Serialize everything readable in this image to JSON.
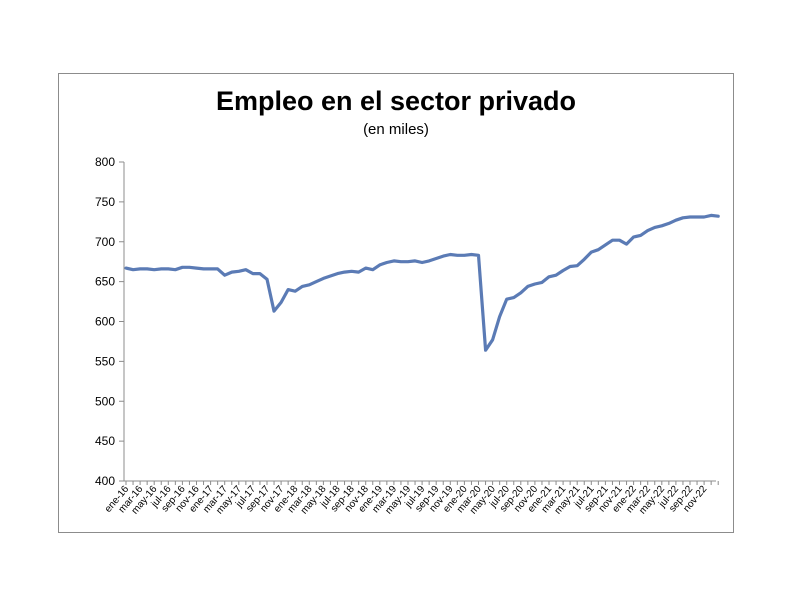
{
  "chart_data": {
    "type": "line",
    "title": "Empleo en el sector privado",
    "subtitle": "(en miles)",
    "xlabel": "",
    "ylabel": "",
    "ylim": [
      400,
      800
    ],
    "yticks": [
      400,
      450,
      500,
      550,
      600,
      650,
      700,
      750,
      800
    ],
    "grid": false,
    "legend": "none",
    "line_color": "#5b7bb5",
    "x_tick_labels": [
      "ene-16",
      "mar-16",
      "may-16",
      "jul-16",
      "sep-16",
      "nov-16",
      "ene-17",
      "mar-17",
      "may-17",
      "jul-17",
      "sep-17",
      "nov-17",
      "ene-18",
      "mar-18",
      "may-18",
      "jul-18",
      "sep-18",
      "nov-18",
      "ene-19",
      "mar-19",
      "may-19",
      "jul-19",
      "sep-19",
      "nov-19",
      "ene-20",
      "mar-20",
      "may-20",
      "jul-20",
      "sep-20",
      "nov-20",
      "ene-21",
      "mar-21",
      "may-21",
      "jul-21",
      "sep-21",
      "nov-21",
      "ene-22",
      "mar-22",
      "may-22",
      "jul-22",
      "sep-22",
      "nov-22"
    ],
    "series": [
      {
        "values": [
          667,
          665,
          666,
          666,
          665,
          666,
          666,
          665,
          668,
          668,
          667,
          666,
          666,
          666,
          658,
          662,
          663,
          665,
          660,
          660,
          653,
          613,
          624,
          640,
          638,
          644,
          646,
          650,
          654,
          657,
          660,
          662,
          663,
          662,
          667,
          665,
          671,
          674,
          676,
          675,
          675,
          676,
          674,
          676,
          679,
          682,
          684,
          683,
          683,
          684,
          683,
          564,
          577,
          606,
          628,
          630,
          636,
          644,
          647,
          649,
          656,
          658,
          664,
          669,
          670,
          678,
          687,
          690,
          696,
          702,
          702,
          697,
          706,
          708,
          714,
          718,
          720,
          723,
          727,
          730,
          731,
          731,
          731,
          733,
          732
        ]
      }
    ]
  }
}
